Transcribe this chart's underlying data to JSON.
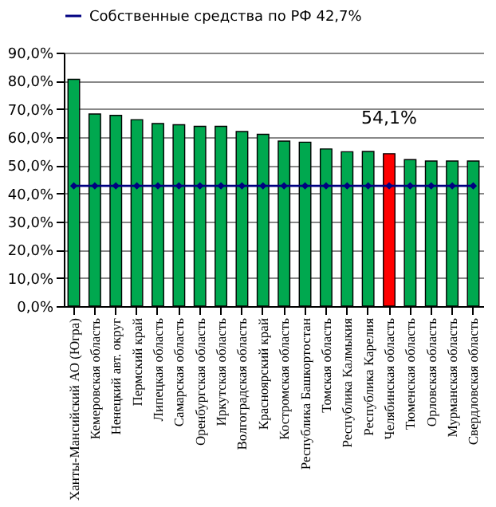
{
  "chart_data": {
    "type": "bar",
    "categories": [
      "Ханты-Мансийский АО (Югра)",
      "Кемеровская область",
      "Ненецкий авт. округ",
      "Пермский край",
      "Липецкая область",
      "Самарская область",
      "Оренбургская область",
      "Иркутская область",
      "Волгоградская область",
      "Красноярский край",
      "Костромская область",
      "Республика Башкортостан",
      "Томская область",
      "Республика Калмыкия",
      "Республика Карелия",
      "Челябинская область",
      "Тюменская область",
      "Орловская область",
      "Мурманская область",
      "Свердловская область"
    ],
    "series": [
      {
        "colors": [
          "#00a84f",
          "#00a84f",
          "#00a84f",
          "#00a84f",
          "#00a84f",
          "#00a84f",
          "#00a84f",
          "#00a84f",
          "#00a84f",
          "#00a84f",
          "#00a84f",
          "#00a84f",
          "#00a84f",
          "#00a84f",
          "#00a84f",
          "#ff0000",
          "#00a84f",
          "#00a84f",
          "#00a84f",
          "#00a84f"
        ],
        "values": [
          80.5,
          68.2,
          67.7,
          66.2,
          64.8,
          64.4,
          63.8,
          63.8,
          62,
          61,
          58.6,
          58.2,
          55.8,
          54.8,
          54.9,
          54.1,
          52,
          51.5,
          51.5,
          51.5
        ]
      },
      {
        "type": "line",
        "name": "Собственные средства по РФ 42,7%",
        "color": "#000080",
        "values": [
          42.7,
          42.7,
          42.7,
          42.7,
          42.7,
          42.7,
          42.7,
          42.7,
          42.7,
          42.7,
          42.7,
          42.7,
          42.7,
          42.7,
          42.7,
          42.7,
          42.7,
          42.7,
          42.7,
          42.7
        ]
      }
    ],
    "ylim": [
      0,
      90
    ],
    "yticks": [
      {
        "value": 0,
        "label": "0,0%"
      },
      {
        "value": 10,
        "label": "10,0%"
      },
      {
        "value": 20,
        "label": "20,0%"
      },
      {
        "value": 30,
        "label": "30,0%"
      },
      {
        "value": 40,
        "label": "40,0%"
      },
      {
        "value": 50,
        "label": "50,0%"
      },
      {
        "value": 60,
        "label": "60,0%"
      },
      {
        "value": 70,
        "label": "70,0%"
      },
      {
        "value": 80,
        "label": "80,0%"
      },
      {
        "value": 90,
        "label": "90,0%"
      }
    ],
    "annotations": [
      {
        "text": "54,1%",
        "x": "Челябинская область",
        "y": 54.1
      }
    ],
    "grid": "y",
    "legend": "top",
    "marker": "diamond",
    "line_style": "solid"
  }
}
